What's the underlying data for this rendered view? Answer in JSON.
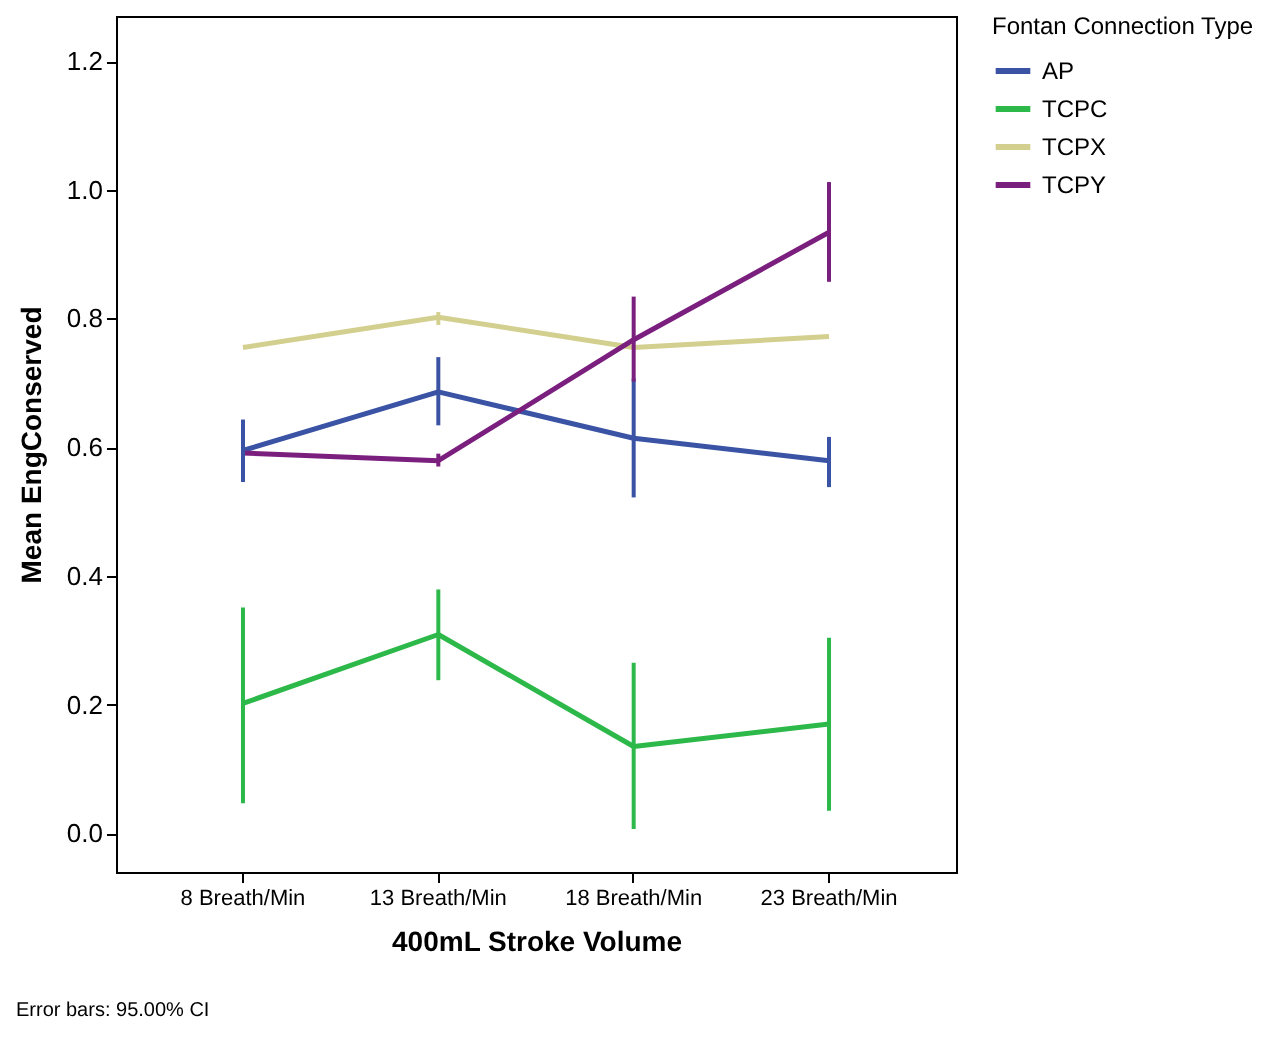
{
  "chart_data": {
    "type": "line",
    "xlabel": "400mL Stroke Volume",
    "ylabel": "Mean EngConserved",
    "legend_title": "Fontan Connection Type",
    "categories": [
      "8 Breath/Min",
      "13 Breath/Min",
      "18 Breath/Min",
      "23 Breath/Min"
    ],
    "series": [
      {
        "name": "AP",
        "color": "#3a53a4",
        "values": [
          0.595,
          0.686,
          0.614,
          0.579
        ],
        "errors": [
          [
            0.546,
            0.643
          ],
          [
            0.634,
            0.74
          ],
          [
            0.522,
            0.707
          ],
          [
            0.538,
            0.616
          ]
        ]
      },
      {
        "name": "TCPC",
        "color": "#2db84a",
        "values": [
          0.202,
          0.309,
          0.135,
          0.17
        ],
        "errors": [
          [
            0.047,
            0.351
          ],
          [
            0.238,
            0.379
          ],
          [
            0.007,
            0.265
          ],
          [
            0.035,
            0.304
          ]
        ]
      },
      {
        "name": "TCPX",
        "color": "#d3cf8e",
        "values": [
          0.755,
          0.802,
          0.755,
          0.772
        ],
        "errors": [
          null,
          [
            0.79,
            0.81
          ],
          null,
          null
        ]
      },
      {
        "name": "TCPY",
        "color": "#7b1f7e",
        "values": [
          0.591,
          0.579,
          0.767,
          0.934
        ],
        "errors": [
          null,
          [
            0.57,
            0.59
          ],
          [
            0.702,
            0.834
          ],
          [
            0.857,
            1.012
          ]
        ]
      }
    ],
    "ylim": [
      -0.06,
      1.27
    ],
    "yticks": [
      {
        "value": 0,
        "label": "0.0"
      },
      0.2,
      0.4,
      0.6,
      0.8,
      {
        "value": 1,
        "label": "1.0"
      },
      1.2
    ],
    "grid": false,
    "legend": "top right",
    "marker": "none",
    "line_style": "solid",
    "annotations": [
      "Error bars: 95.00% CI"
    ]
  }
}
